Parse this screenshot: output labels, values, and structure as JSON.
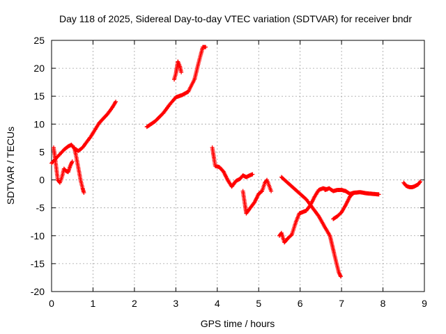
{
  "chart_data": {
    "type": "scatter",
    "title": "Day 118 of 2025, Sidereal Day-to-day VTEC variation (SDTVAR) for receiver bndr",
    "xlabel": "GPS time / hours",
    "ylabel": "SDTVAR / TECUs",
    "xlim": [
      0,
      9
    ],
    "ylim": [
      -20,
      25
    ],
    "xticks": [
      0,
      1,
      2,
      3,
      4,
      5,
      6,
      7,
      8,
      9
    ],
    "yticks": [
      -20,
      -15,
      -10,
      -5,
      0,
      5,
      10,
      15,
      20,
      25
    ],
    "grid": true,
    "marker": "plus",
    "color": "#ff0000",
    "segments": [
      {
        "x": [
          0.0,
          0.1,
          0.2,
          0.3,
          0.4,
          0.48,
          0.55,
          0.65,
          0.75,
          0.85,
          0.95,
          1.05,
          1.15,
          1.25,
          1.35,
          1.45,
          1.55
        ],
        "y": [
          3.0,
          3.8,
          4.6,
          5.4,
          6.0,
          6.3,
          5.6,
          5.2,
          5.8,
          6.8,
          7.8,
          9.0,
          10.2,
          11.0,
          11.8,
          12.8,
          14.0
        ]
      },
      {
        "x": [
          0.05,
          0.1,
          0.15,
          0.2,
          0.25,
          0.3,
          0.35,
          0.4,
          0.45,
          0.5
        ],
        "y": [
          5.8,
          3.0,
          0.0,
          -0.5,
          0.5,
          2.0,
          1.6,
          1.4,
          2.5,
          3.3
        ]
      },
      {
        "x": [
          0.55,
          0.6,
          0.65,
          0.7,
          0.75,
          0.78
        ],
        "y": [
          5.8,
          4.0,
          2.0,
          0.0,
          -1.5,
          -2.3
        ]
      },
      {
        "x": [
          2.3,
          2.5,
          2.7,
          2.85,
          3.0,
          3.15,
          3.3,
          3.45,
          3.55,
          3.65,
          3.72
        ],
        "y": [
          9.5,
          10.5,
          12.0,
          13.5,
          14.8,
          15.2,
          15.8,
          18.0,
          21.0,
          23.8,
          23.8
        ]
      },
      {
        "x": [
          2.96,
          3.0,
          3.05,
          3.1,
          3.13
        ],
        "y": [
          18.0,
          19.0,
          21.2,
          20.3,
          19.3
        ]
      },
      {
        "x": [
          3.88,
          3.95,
          4.05,
          4.15,
          4.25,
          4.35,
          4.45,
          4.55,
          4.62,
          4.7,
          4.78,
          4.85
        ],
        "y": [
          5.8,
          2.5,
          2.3,
          1.5,
          0.0,
          -1.2,
          -0.2,
          0.2,
          0.8,
          0.5,
          0.8,
          1.0
        ]
      },
      {
        "x": [
          4.62,
          4.66,
          4.7,
          4.8,
          4.9,
          5.0,
          5.08,
          5.15,
          5.2,
          5.25,
          5.3
        ],
        "y": [
          -2.0,
          -4.0,
          -6.0,
          -5.0,
          -4.0,
          -2.5,
          -2.0,
          -0.5,
          0.0,
          -1.0,
          -2.0
        ]
      },
      {
        "x": [
          5.55,
          5.7,
          5.85,
          6.0,
          6.15,
          6.3,
          6.45,
          6.6,
          6.72,
          6.8,
          6.88,
          6.93,
          6.98
        ],
        "y": [
          0.5,
          -0.5,
          -1.5,
          -2.5,
          -3.5,
          -5.0,
          -6.5,
          -8.5,
          -10.0,
          -12.5,
          -15.0,
          -16.5,
          -17.3
        ]
      },
      {
        "x": [
          5.5,
          5.55,
          5.62,
          5.7,
          5.8,
          5.9,
          5.98,
          6.05,
          6.15,
          6.25,
          6.35,
          6.45,
          6.55,
          6.65
        ],
        "y": [
          -10.0,
          -9.5,
          -11.2,
          -10.5,
          -9.8,
          -7.5,
          -6.0,
          -5.8,
          -5.5,
          -4.5,
          -3.0,
          -1.8,
          -1.5,
          -1.7
        ]
      },
      {
        "x": [
          6.6,
          6.7,
          6.8,
          6.9,
          7.0,
          7.1,
          7.2,
          7.3,
          7.45,
          7.6,
          7.75,
          7.9
        ],
        "y": [
          -1.8,
          -1.5,
          -2.0,
          -1.8,
          -1.8,
          -2.0,
          -2.5,
          -2.3,
          -2.2,
          -2.4,
          -2.5,
          -2.6
        ]
      },
      {
        "x": [
          6.8,
          6.9,
          7.0,
          7.1,
          7.2,
          7.3
        ],
        "y": [
          -7.0,
          -6.5,
          -5.8,
          -4.5,
          -3.0,
          -2.3
        ]
      },
      {
        "x": [
          8.5,
          8.55,
          8.6,
          8.65,
          8.7,
          8.75,
          8.8,
          8.85,
          8.9
        ],
        "y": [
          -0.5,
          -1.0,
          -1.2,
          -1.3,
          -1.3,
          -1.2,
          -1.0,
          -0.8,
          -0.3
        ]
      }
    ]
  }
}
